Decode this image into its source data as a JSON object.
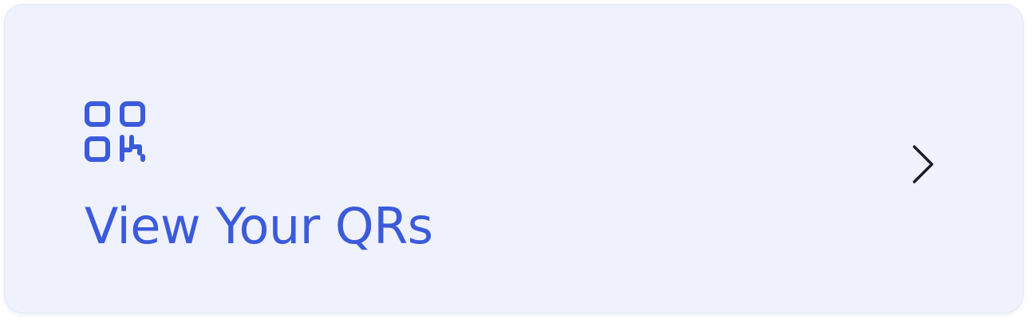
{
  "card": {
    "label": "View Your QRs",
    "icon": "qr-code-icon",
    "action_icon": "chevron-right-icon"
  },
  "colors": {
    "card_background": "#eff2fd",
    "accent": "#3b5bdb",
    "chevron": "#1c1c24"
  }
}
